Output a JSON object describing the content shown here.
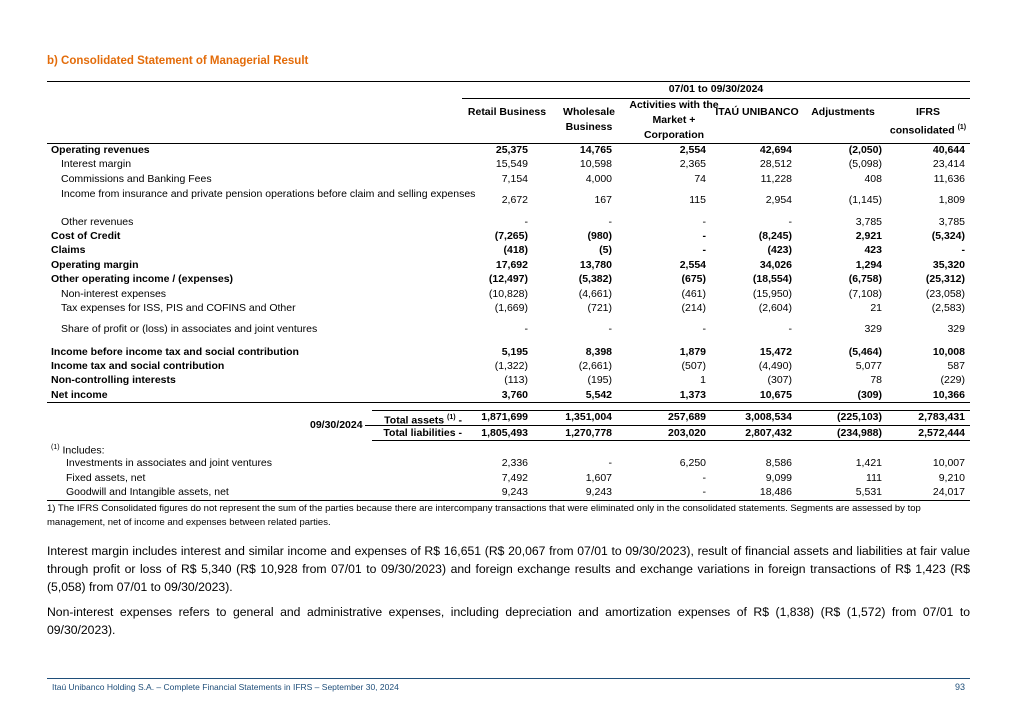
{
  "section_title": "b) Consolidated Statement of Managerial Result",
  "table": {
    "period": "07/01 to 09/30/2024",
    "columns": [
      {
        "label": "Retail Business"
      },
      {
        "label": "Wholesale Business"
      },
      {
        "label": "Activities with the Market + Corporation"
      },
      {
        "label": "ITAÚ UNIBANCO"
      },
      {
        "label": "Adjustments"
      },
      {
        "label": "IFRS consolidated",
        "note": "(1)"
      }
    ],
    "rows": [
      {
        "label": "Operating revenues",
        "values": [
          "25,375",
          "14,765",
          "2,554",
          "42,694",
          "(2,050)",
          "40,644"
        ]
      },
      {
        "label": "Interest margin",
        "values": [
          "15,549",
          "10,598",
          "2,365",
          "28,512",
          "(5,098)",
          "23,414"
        ]
      },
      {
        "label": "Commissions and Banking Fees",
        "values": [
          "7,154",
          "4,000",
          "74",
          "11,228",
          "408",
          "11,636"
        ]
      },
      {
        "label": "Income from insurance and private pension operations before claim and selling expenses",
        "values": [
          "2,672",
          "167",
          "115",
          "2,954",
          "(1,145)",
          "1,809"
        ]
      },
      {
        "label": "Other revenues",
        "values": [
          "-",
          "-",
          "-",
          "-",
          "3,785",
          "3,785"
        ]
      },
      {
        "label": "Cost of Credit",
        "values": [
          "(7,265)",
          "(980)",
          "-",
          "(8,245)",
          "2,921",
          "(5,324)"
        ]
      },
      {
        "label": "Claims",
        "values": [
          "(418)",
          "(5)",
          "-",
          "(423)",
          "423",
          "-"
        ]
      },
      {
        "label": "Operating margin",
        "values": [
          "17,692",
          "13,780",
          "2,554",
          "34,026",
          "1,294",
          "35,320"
        ]
      },
      {
        "label": "Other operating income / (expenses)",
        "values": [
          "(12,497)",
          "(5,382)",
          "(675)",
          "(18,554)",
          "(6,758)",
          "(25,312)"
        ]
      },
      {
        "label": "Non-interest expenses",
        "values": [
          "(10,828)",
          "(4,661)",
          "(461)",
          "(15,950)",
          "(7,108)",
          "(23,058)"
        ]
      },
      {
        "label": "Tax expenses for ISS, PIS and COFINS and Other",
        "values": [
          "(1,669)",
          "(721)",
          "(214)",
          "(2,604)",
          "21",
          "(2,583)"
        ]
      },
      {
        "label": "Share of profit or (loss) in associates and joint ventures",
        "values": [
          "-",
          "-",
          "-",
          "-",
          "329",
          "329"
        ]
      },
      {
        "label": "Income before income tax and social contribution",
        "values": [
          "5,195",
          "8,398",
          "1,879",
          "15,472",
          "(5,464)",
          "10,008"
        ]
      },
      {
        "label": "Income tax and social contribution",
        "values": [
          "(1,322)",
          "(2,661)",
          "(507)",
          "(4,490)",
          "5,077",
          "587"
        ]
      },
      {
        "label": "Non-controlling interests",
        "values": [
          "(113)",
          "(195)",
          "1",
          "(307)",
          "78",
          "(229)"
        ]
      },
      {
        "label": "Net income",
        "values": [
          "3,760",
          "5,542",
          "1,373",
          "10,675",
          "(309)",
          "10,366"
        ]
      }
    ],
    "balance": {
      "date": "09/30/2024",
      "rows": [
        {
          "label": "Total assets",
          "note": "(1)",
          "dash": "-",
          "values": [
            "1,871,699",
            "1,351,004",
            "257,689",
            "3,008,534",
            "(225,103)",
            "2,783,431"
          ]
        },
        {
          "label": "Total liabilities",
          "dash": "-",
          "values": [
            "1,805,493",
            "1,270,778",
            "203,020",
            "2,807,432",
            "(234,988)",
            "2,572,444"
          ]
        }
      ]
    },
    "includes": {
      "note": "(1)",
      "label": "Includes:",
      "rows": [
        {
          "label": "Investments in associates and joint ventures",
          "values": [
            "2,336",
            "-",
            "6,250",
            "8,586",
            "1,421",
            "10,007"
          ]
        },
        {
          "label": "Fixed assets, net",
          "values": [
            "7,492",
            "1,607",
            "-",
            "9,099",
            "111",
            "9,210"
          ]
        },
        {
          "label": "Goodwill and Intangible assets, net",
          "values": [
            "9,243",
            "9,243",
            "-",
            "18,486",
            "5,531",
            "24,017"
          ]
        }
      ]
    },
    "footnote": "1) The IFRS Consolidated figures do not represent the sum of the parties because there are intercompany transactions that were eliminated only in the consolidated statements. Segments are assessed by top management, net of income and expenses between related parties."
  },
  "paragraphs": [
    "Interest margin includes interest and similar income and expenses of R$ 16,651 (R$ 20,067 from 07/01 to 09/30/2023), result of financial assets and liabilities at fair value through profit or loss of R$ 5,340 (R$ 10,928 from 07/01 to 09/30/2023) and foreign exchange results and exchange variations in foreign transactions of R$ 1,423 (R$ (5,058) from 07/01 to 09/30/2023).",
    "Non-interest expenses refers to general and administrative expenses, including depreciation and amortization expenses of R$ (1,838) (R$ (1,572) from 07/01 to 09/30/2023)."
  ],
  "footer": {
    "text": "Itaú Unibanco Holding S.A. – Complete Financial Statements in IFRS – September 30, 2024",
    "page": "93"
  }
}
